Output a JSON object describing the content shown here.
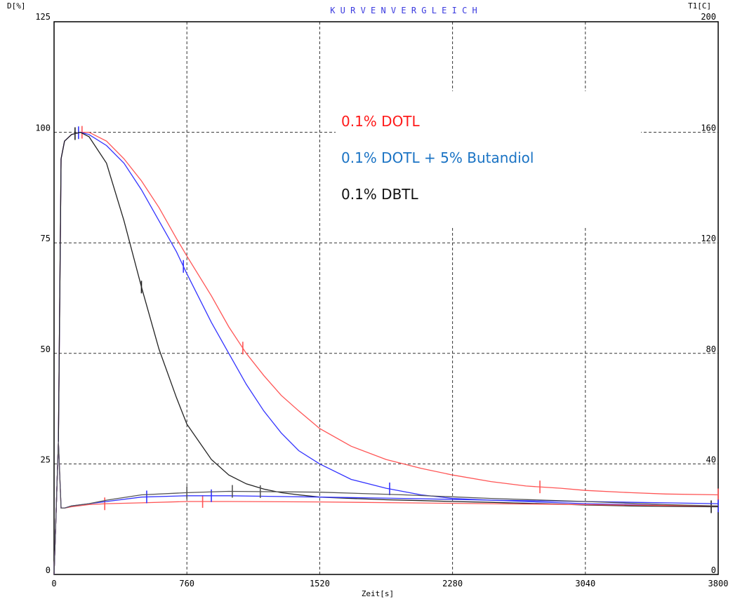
{
  "chart_data": {
    "type": "line",
    "title": "K U R V E N V E R G L E I C H",
    "xlabel": "Zeit[s]",
    "ylabel_left": "D[%]",
    "ylabel_right": "T1[C]",
    "xlim": [
      0,
      3800
    ],
    "ylim_left": [
      0,
      125
    ],
    "ylim_right": [
      0,
      200
    ],
    "x_ticks": [
      "0",
      "760",
      "1520",
      "2280",
      "3040",
      "3800"
    ],
    "y_left_ticks": [
      "0",
      "25",
      "50",
      "75",
      "100",
      "125"
    ],
    "y_right_ticks": [
      "0",
      "40",
      "80",
      "120",
      "160",
      "200"
    ],
    "grid": true,
    "legend": [
      {
        "label": "0.1% DOTL",
        "color": "#ff1a1a"
      },
      {
        "label": "0.1% DOTL + 5% Butandiol",
        "color": "#1a73c4"
      },
      {
        "label": "0.1% DBTL",
        "color": "#111111"
      }
    ],
    "series": [
      {
        "color": "#ff5555",
        "kind": "D",
        "x": [
          0,
          25,
          40,
          60,
          100,
          150,
          200,
          300,
          400,
          500,
          600,
          700,
          760,
          900,
          1000,
          1100,
          1200,
          1300,
          1400,
          1520,
          1700,
          1900,
          2100,
          2280,
          2500,
          2700,
          2900,
          3040,
          3300,
          3500,
          3800
        ],
        "y": [
          0,
          30,
          94,
          98,
          99.5,
          100,
          100,
          98,
          94,
          89,
          83,
          76,
          72,
          63,
          56,
          50,
          45,
          40.5,
          37,
          33,
          29,
          26,
          24,
          22.5,
          21,
          20,
          19.5,
          19,
          18.5,
          18.2,
          18
        ],
        "markers_x": [
          160,
          1080,
          2780,
          3800
        ]
      },
      {
        "color": "#3333ff",
        "kind": "D",
        "x": [
          0,
          25,
          40,
          60,
          100,
          150,
          200,
          300,
          400,
          500,
          600,
          700,
          760,
          900,
          1000,
          1100,
          1200,
          1300,
          1400,
          1520,
          1700,
          1900,
          2100,
          2280,
          2500,
          2700,
          2900,
          3040,
          3300,
          3500,
          3800
        ],
        "y": [
          0,
          30,
          94,
          98,
          99.5,
          100,
          99.5,
          97,
          93,
          87,
          80,
          73,
          68,
          57,
          50,
          43,
          37,
          32,
          28,
          25,
          21.5,
          19.5,
          18,
          17.2,
          16.8,
          16.5,
          16.2,
          16,
          15.8,
          15.6,
          15.5
        ],
        "markers_x": [
          140,
          740,
          1920,
          3800
        ]
      },
      {
        "color": "#222222",
        "kind": "D",
        "x": [
          0,
          25,
          40,
          60,
          100,
          150,
          200,
          300,
          400,
          500,
          600,
          700,
          760,
          900,
          1000,
          1100,
          1200,
          1300,
          1400,
          1520,
          1700,
          1900,
          2100,
          2280,
          2500,
          2700,
          2900,
          3040,
          3300,
          3500,
          3800
        ],
        "y": [
          0,
          30,
          94,
          98,
          99.5,
          100,
          99,
          93,
          80,
          65,
          51,
          40,
          34,
          26,
          22.5,
          20.5,
          19.3,
          18.5,
          18,
          17.5,
          17.2,
          16.9,
          16.7,
          16.5,
          16.3,
          16.1,
          15.9,
          15.7,
          15.5,
          15.4,
          15.3
        ],
        "markers_x": [
          120,
          500,
          3760
        ]
      },
      {
        "color": "#ff5555",
        "kind": "T",
        "x": [
          0,
          25,
          40,
          60,
          100,
          200,
          300,
          500,
          760,
          1000,
          1520,
          2000,
          2500,
          3040,
          3500,
          3800
        ],
        "y": [
          0,
          30,
          15,
          15,
          15.3,
          15.8,
          16,
          16.2,
          16.5,
          16.5,
          16.4,
          16.2,
          16,
          15.8,
          15.6,
          15.5
        ],
        "markers_x": [
          290,
          850
        ]
      },
      {
        "color": "#3333ff",
        "kind": "T",
        "x": [
          0,
          25,
          40,
          60,
          100,
          200,
          300,
          500,
          760,
          1000,
          1520,
          2000,
          2500,
          3040,
          3500,
          3800
        ],
        "y": [
          0,
          30,
          15,
          15,
          15.5,
          16,
          16.5,
          17.5,
          17.8,
          17.8,
          17.5,
          17.2,
          16.8,
          16.5,
          16.2,
          16
        ],
        "markers_x": [
          530,
          900
        ]
      },
      {
        "color": "#555555",
        "kind": "T",
        "x": [
          0,
          25,
          40,
          60,
          100,
          200,
          300,
          500,
          760,
          1000,
          1520,
          2000,
          2500,
          3040,
          3500,
          3800
        ],
        "y": [
          0,
          30,
          15,
          15,
          15.5,
          16,
          16.8,
          18,
          18.5,
          18.8,
          18.6,
          18,
          17.2,
          16.5,
          15.8,
          15.5
        ],
        "markers_x": [
          760,
          1020,
          1180
        ]
      }
    ]
  }
}
